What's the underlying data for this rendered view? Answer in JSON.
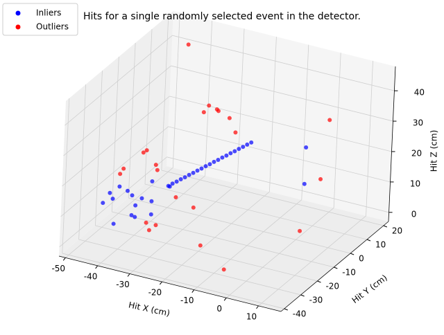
{
  "chart_data": {
    "type": "scatter3d",
    "title": "Hits for a single randomly selected event in the detector.",
    "xlabel": "Hit X (cm)",
    "ylabel": "Hit Y (cm)",
    "zlabel": "Hit Z (cm)",
    "xlim": [
      -52,
      17
    ],
    "ylim": [
      -42,
      23
    ],
    "zlim": [
      -3,
      48
    ],
    "xticks": [
      -50,
      -40,
      -30,
      -20,
      -10,
      0,
      10
    ],
    "yticks": [
      -40,
      -30,
      -20,
      -10,
      0,
      10,
      20
    ],
    "zticks": [
      0,
      10,
      20,
      30,
      40
    ],
    "grid": true,
    "legend": "upper left",
    "series": [
      {
        "name": "Inliers",
        "color": "#0000ff",
        "x": [
          -35,
          -34,
          -33,
          -32,
          -31,
          -30,
          -29,
          -28,
          -27,
          -26,
          -25,
          -24,
          -23,
          -22,
          -21,
          -20,
          -19,
          -18,
          -17,
          -16,
          -15,
          -45,
          -48,
          -42,
          -40,
          -46,
          -38,
          -50,
          -44,
          -41,
          -47,
          -36,
          -43,
          -49,
          -39,
          -37,
          -3,
          -3
        ],
        "y": [
          -10,
          -9.5,
          -9,
          -8.5,
          -8,
          -7.5,
          -7,
          -6.5,
          -6,
          -5.5,
          -5,
          -4.5,
          -4,
          -3.5,
          -3,
          -2.5,
          -2,
          -1.5,
          -1,
          -0.5,
          0,
          -15,
          -18,
          -12,
          -20,
          -10,
          -14,
          -20,
          -25,
          -8,
          -22,
          -18,
          -16,
          -12,
          -22,
          -5,
          10,
          10
        ],
        "z": [
          10,
          10.8,
          11.5,
          12.3,
          13,
          13.8,
          14.5,
          15.3,
          16,
          16.8,
          17.5,
          18.3,
          19,
          19.8,
          20.5,
          21.3,
          22,
          22.8,
          23.5,
          24.3,
          25,
          8,
          6,
          5,
          3,
          4,
          6,
          5,
          2,
          9,
          10,
          4,
          1,
          7,
          8,
          7,
          22,
          10
        ]
      },
      {
        "name": "Outliers",
        "color": "#ff0000",
        "x": [
          -43,
          -30,
          -29,
          -26,
          -26,
          -23,
          -20,
          -1,
          -3,
          6,
          -7,
          -17,
          -27,
          -35,
          -47,
          -48,
          -44,
          -43,
          -49,
          -50,
          -34,
          -31,
          -32
        ],
        "y": [
          15,
          0,
          1,
          0,
          1,
          2,
          0,
          20,
          20,
          -10,
          -30,
          -25,
          -10,
          -5,
          0,
          0,
          0,
          -1,
          -10,
          -10,
          -25,
          -25,
          -27
        ],
        "z": [
          43,
          31,
          33,
          33,
          32,
          30,
          27,
          27,
          7,
          6,
          -1,
          2,
          5,
          4,
          14,
          13,
          10,
          9,
          12,
          10,
          5,
          5,
          4
        ]
      }
    ]
  }
}
